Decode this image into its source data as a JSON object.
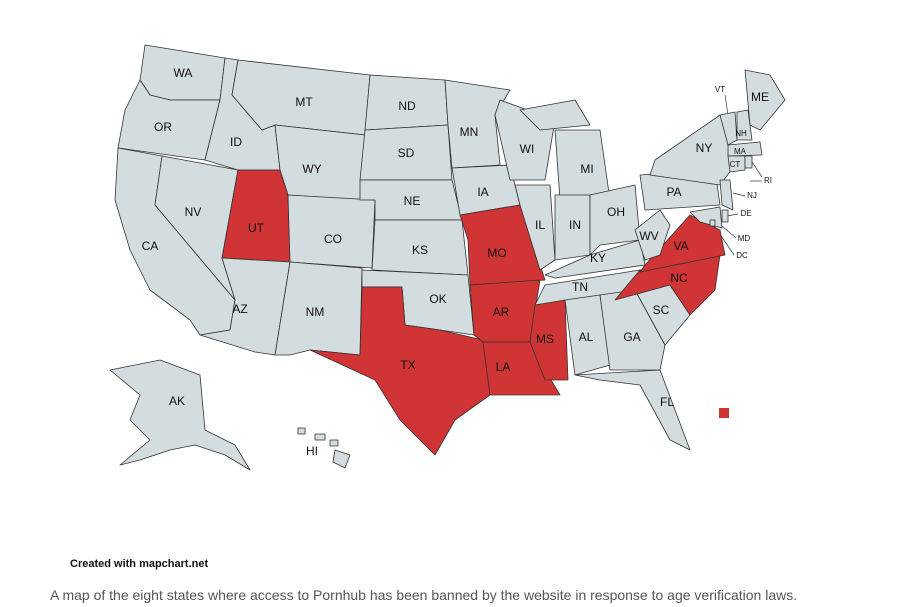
{
  "map": {
    "banned_color": "#d03434",
    "default_color": "#d3dcde",
    "states": [
      {
        "label": "WA",
        "banned": false
      },
      {
        "label": "OR",
        "banned": false
      },
      {
        "label": "CA",
        "banned": false
      },
      {
        "label": "NV",
        "banned": false
      },
      {
        "label": "ID",
        "banned": false
      },
      {
        "label": "MT",
        "banned": false
      },
      {
        "label": "WY",
        "banned": false
      },
      {
        "label": "UT",
        "banned": true
      },
      {
        "label": "CO",
        "banned": false
      },
      {
        "label": "AZ",
        "banned": false
      },
      {
        "label": "NM",
        "banned": false
      },
      {
        "label": "ND",
        "banned": false
      },
      {
        "label": "SD",
        "banned": false
      },
      {
        "label": "NE",
        "banned": false
      },
      {
        "label": "KS",
        "banned": false
      },
      {
        "label": "OK",
        "banned": false
      },
      {
        "label": "TX",
        "banned": true
      },
      {
        "label": "MN",
        "banned": false
      },
      {
        "label": "IA",
        "banned": false
      },
      {
        "label": "MO",
        "banned": true
      },
      {
        "label": "AR",
        "banned": true
      },
      {
        "label": "LA",
        "banned": true
      },
      {
        "label": "WI",
        "banned": false
      },
      {
        "label": "IL",
        "banned": false
      },
      {
        "label": "MI",
        "banned": false
      },
      {
        "label": "IN",
        "banned": false
      },
      {
        "label": "OH",
        "banned": false
      },
      {
        "label": "KY",
        "banned": false
      },
      {
        "label": "TN",
        "banned": false
      },
      {
        "label": "MS",
        "banned": true
      },
      {
        "label": "AL",
        "banned": false
      },
      {
        "label": "GA",
        "banned": false
      },
      {
        "label": "FL",
        "banned": false
      },
      {
        "label": "SC",
        "banned": false
      },
      {
        "label": "NC",
        "banned": true
      },
      {
        "label": "VA",
        "banned": true
      },
      {
        "label": "WV",
        "banned": false
      },
      {
        "label": "PA",
        "banned": false
      },
      {
        "label": "NY",
        "banned": false
      },
      {
        "label": "ME",
        "banned": false
      },
      {
        "label": "VT",
        "banned": false
      },
      {
        "label": "NH",
        "banned": false
      },
      {
        "label": "MA",
        "banned": false
      },
      {
        "label": "CT",
        "banned": false
      },
      {
        "label": "RI",
        "banned": false
      },
      {
        "label": "NJ",
        "banned": false
      },
      {
        "label": "DE",
        "banned": false
      },
      {
        "label": "MD",
        "banned": false
      },
      {
        "label": "DC",
        "banned": false
      },
      {
        "label": "AK",
        "banned": false
      },
      {
        "label": "HI",
        "banned": false
      }
    ]
  },
  "credit": "Created with mapchart.net",
  "caption": "A map of the eight states where access to Pornhub has been banned by the website in response to age verification laws."
}
